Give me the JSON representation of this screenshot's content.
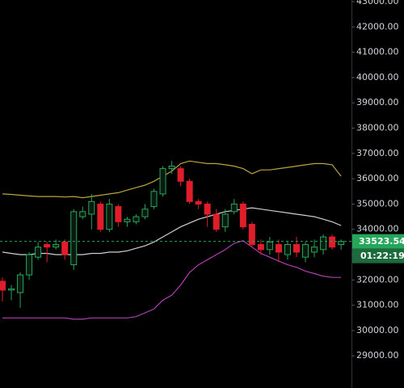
{
  "chart_data": {
    "type": "candlestick",
    "ylim": [
      27730,
      43065
    ],
    "yticks": [
      {
        "value": 29000,
        "label": "29000.00"
      },
      {
        "value": 30000,
        "label": "30000.00"
      },
      {
        "value": 31000,
        "label": "31000.00"
      },
      {
        "value": 32000,
        "label": "32000.00"
      },
      {
        "value": 33000,
        "label": "33000.00"
      },
      {
        "value": 34000,
        "label": "34000.00"
      },
      {
        "value": 35000,
        "label": "35000.00"
      },
      {
        "value": 36000,
        "label": "36000.00"
      },
      {
        "value": 37000,
        "label": "37000.00"
      },
      {
        "value": 38000,
        "label": "38000.00"
      },
      {
        "value": 39000,
        "label": "39000.00"
      },
      {
        "value": 40000,
        "label": "40000.00"
      },
      {
        "value": 41000,
        "label": "41000.00"
      },
      {
        "value": 42000,
        "label": "42000.00"
      },
      {
        "value": 43000,
        "label": "43000.00"
      }
    ],
    "up_color": "#26a65b",
    "down_color": "#e01e2b",
    "open": [
      31950,
      31600,
      31500,
      32200,
      32900,
      33400,
      33300,
      33500,
      32600,
      34500,
      34600,
      35000,
      34000,
      34900,
      34300,
      34300,
      34500,
      34900,
      35400,
      36400,
      36400,
      35900,
      35100,
      35000,
      34600,
      34100,
      34700,
      35000,
      34200,
      33400,
      33200,
      33400,
      33000,
      33400,
      32900,
      33100,
      33200,
      33700,
      33400
    ],
    "high": [
      32100,
      31800,
      32300,
      33100,
      33500,
      33500,
      33600,
      33600,
      34800,
      34900,
      35400,
      35100,
      35200,
      35000,
      34500,
      34600,
      35000,
      35600,
      36500,
      36700,
      36500,
      36000,
      35200,
      35100,
      34800,
      34800,
      35200,
      35100,
      34300,
      33600,
      33700,
      33600,
      33500,
      33700,
      33500,
      33600,
      33800,
      33800,
      33600
    ],
    "low": [
      31150,
      31200,
      30900,
      32000,
      32800,
      32700,
      33200,
      32800,
      32400,
      34400,
      34000,
      33900,
      33900,
      34100,
      34100,
      34200,
      34400,
      34800,
      35300,
      36200,
      35700,
      35000,
      34800,
      34100,
      33900,
      33900,
      34600,
      34000,
      33300,
      33000,
      33000,
      32700,
      32800,
      32900,
      32700,
      32900,
      33000,
      33200,
      33200
    ],
    "close": [
      31600,
      31650,
      32200,
      33000,
      33300,
      33300,
      33400,
      33000,
      34700,
      34700,
      35100,
      34000,
      35000,
      34300,
      34400,
      34500,
      34800,
      35500,
      36400,
      36500,
      35900,
      35100,
      35000,
      34600,
      34000,
      34600,
      35000,
      34100,
      33400,
      33200,
      33500,
      33100,
      33400,
      33100,
      33400,
      33300,
      33700,
      33300,
      33523.54
    ],
    "upper": {
      "color": "#b8a53e",
      "values": [
        35400,
        35380,
        35350,
        35320,
        35300,
        35300,
        35300,
        35280,
        35300,
        35250,
        35300,
        35350,
        35400,
        35450,
        35550,
        35650,
        35750,
        35900,
        36100,
        36300,
        36600,
        36700,
        36650,
        36600,
        36600,
        36550,
        36500,
        36400,
        36200,
        36350,
        36350,
        36400,
        36450,
        36500,
        36550,
        36600,
        36600,
        36550,
        36100
      ]
    },
    "middle": {
      "color": "#cfcfcf",
      "values": [
        33100,
        33050,
        33000,
        33000,
        33050,
        33050,
        33000,
        33000,
        33000,
        33000,
        33050,
        33050,
        33100,
        33100,
        33150,
        33250,
        33350,
        33500,
        33700,
        33900,
        34100,
        34250,
        34400,
        34500,
        34600,
        34700,
        34750,
        34800,
        34850,
        34800,
        34750,
        34700,
        34650,
        34600,
        34550,
        34500,
        34400,
        34300,
        34150
      ]
    },
    "lower": {
      "color": "#b03fb0",
      "values": [
        30500,
        30500,
        30500,
        30500,
        30500,
        30500,
        30500,
        30500,
        30450,
        30450,
        30500,
        30500,
        30500,
        30500,
        30500,
        30550,
        30700,
        30850,
        31200,
        31400,
        31800,
        32300,
        32600,
        32800,
        33000,
        33200,
        33450,
        33550,
        33300,
        33050,
        32900,
        32750,
        32600,
        32500,
        32350,
        32250,
        32150,
        32100,
        32100
      ]
    },
    "last_price": 33523.54,
    "countdown": "01:22:19"
  }
}
